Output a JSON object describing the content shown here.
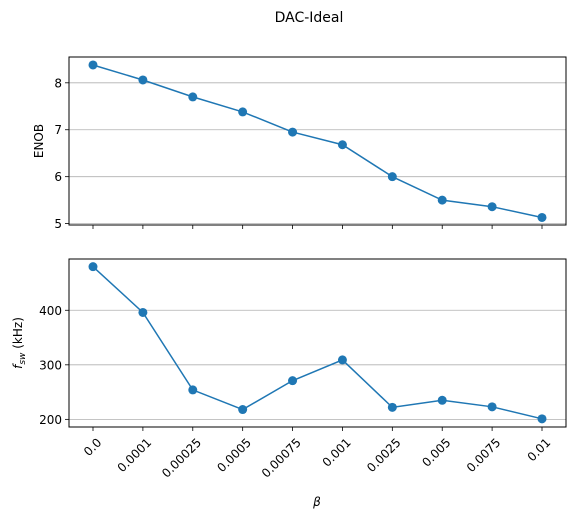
{
  "chart_data": {
    "title": "DAC-Ideal",
    "type": "line",
    "categories": [
      "0.0",
      "0.0001",
      "0.00025",
      "0.0005",
      "0.00075",
      "0.001",
      "0.0025",
      "0.005",
      "0.0075",
      "0.01"
    ],
    "xlabel": "β",
    "color": "#1f77b4",
    "panels": [
      {
        "name": "enob",
        "ylabel": "ENOB",
        "ylim": [
          4.97,
          8.55
        ],
        "yticks": [
          5,
          6,
          7,
          8
        ],
        "grid": true,
        "series": [
          {
            "name": "ENOB",
            "values": [
              8.38,
              8.06,
              7.7,
              7.38,
              6.95,
              6.68,
              6.0,
              5.5,
              5.36,
              5.13
            ]
          }
        ]
      },
      {
        "name": "fsw",
        "ylabel_main": "f",
        "ylabel_sub": "sw",
        "ylabel_rest": " (kHz)",
        "ylim": [
          186,
          494
        ],
        "yticks": [
          200,
          300,
          400
        ],
        "grid": true,
        "series": [
          {
            "name": "f_sw",
            "values": [
              480,
              396,
              254,
              218,
              271,
              309,
              222,
              235,
              223,
              201
            ]
          }
        ]
      }
    ]
  }
}
